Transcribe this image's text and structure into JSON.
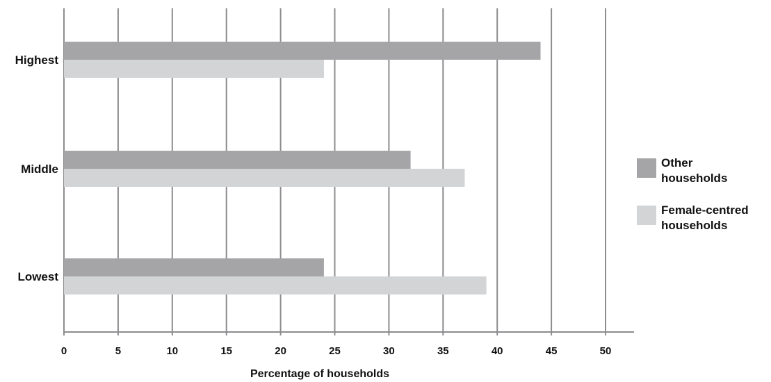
{
  "chart_data": {
    "type": "bar",
    "orientation": "horizontal",
    "categories": [
      "Highest",
      "Middle",
      "Lowest"
    ],
    "series": [
      {
        "name": "Other households",
        "values": [
          44,
          32,
          24
        ],
        "color": "#a5a5a8"
      },
      {
        "name": "Female-centred households",
        "values": [
          24,
          37,
          39
        ],
        "color": "#d3d4d6"
      }
    ],
    "xlabel": "Percentage of households",
    "ylabel": "",
    "xlim": [
      0,
      52
    ],
    "xticks": [
      "0",
      "5",
      "10",
      "15",
      "20",
      "25",
      "30",
      "35",
      "40",
      "45",
      "50"
    ],
    "grid": true,
    "legend": "right",
    "legend_items": [
      {
        "line1": "Other",
        "line2": "households"
      },
      {
        "line1": "Female-centred",
        "line2": "households"
      }
    ],
    "gridline_color": "#8c8c8f"
  }
}
